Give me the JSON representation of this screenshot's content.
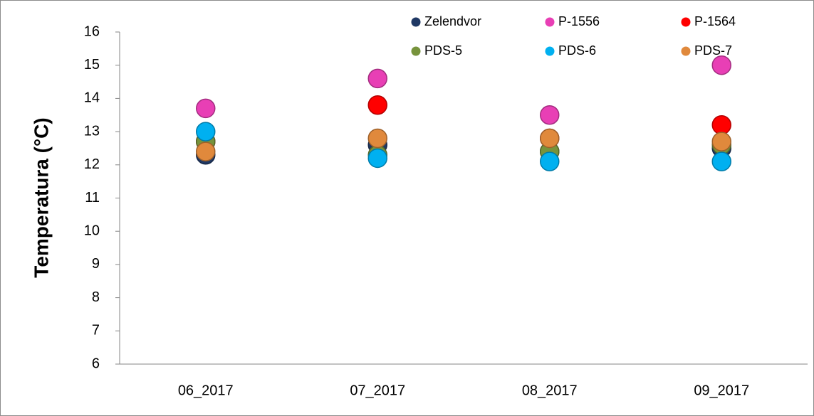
{
  "chart_data": {
    "type": "scatter",
    "y_label": "Temperatura (°C)",
    "categories": [
      "06_2017",
      "07_2017",
      "08_2017",
      "09_2017"
    ],
    "series": [
      {
        "name": "Zelendvor",
        "color": "#1f3864",
        "values": [
          12.3,
          12.6,
          12.4,
          12.5
        ]
      },
      {
        "name": "P-1556",
        "color": "#e83fb5",
        "values": [
          13.7,
          14.6,
          13.5,
          15.0
        ]
      },
      {
        "name": "P-1564",
        "color": "#ff0000",
        "values": [
          12.7,
          13.8,
          12.8,
          13.2
        ]
      },
      {
        "name": "PDS-5",
        "color": "#77933c",
        "values": [
          12.7,
          12.3,
          12.4,
          12.6
        ]
      },
      {
        "name": "PDS-6",
        "color": "#00b0f0",
        "values": [
          13.0,
          12.2,
          12.1,
          12.1
        ]
      },
      {
        "name": "PDS-7",
        "color": "#e0893c",
        "values": [
          12.4,
          12.8,
          12.8,
          12.7
        ]
      }
    ],
    "ylim": [
      6,
      16
    ],
    "yticks": [
      6,
      7,
      8,
      9,
      10,
      11,
      12,
      13,
      14,
      15,
      16
    ],
    "legend": "top"
  }
}
